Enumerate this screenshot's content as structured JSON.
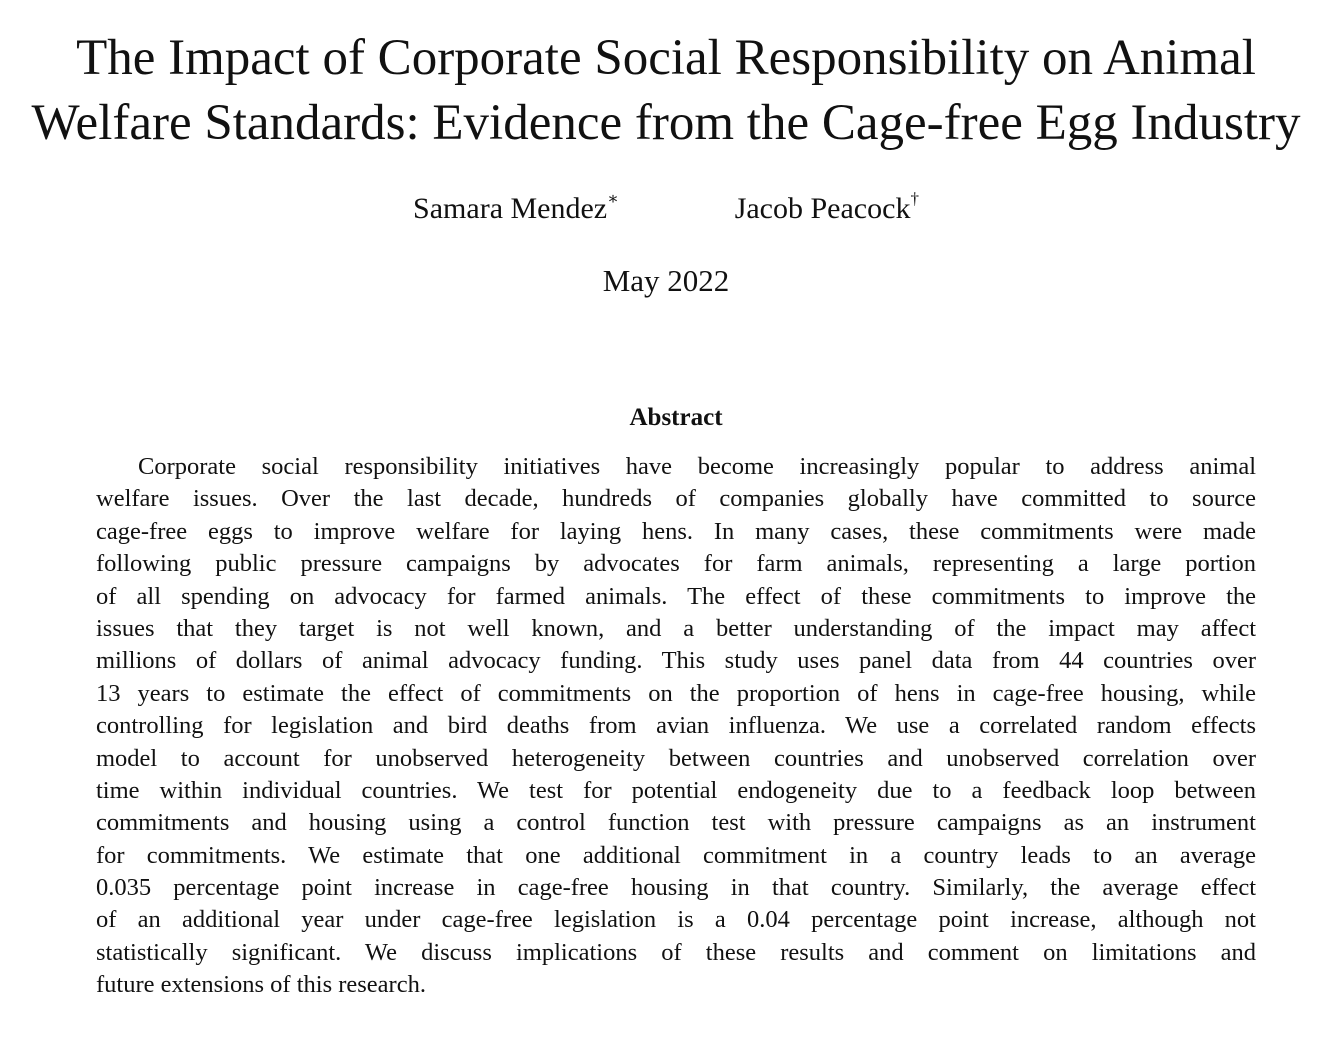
{
  "title": {
    "lines": [
      "The Impact of Corporate Social Responsibility on Animal",
      "Welfare Standards: Evidence from the Cage-free Egg Industry"
    ]
  },
  "authors": [
    {
      "name": "Samara Mendez",
      "mark": "∗"
    },
    {
      "name": "Jacob Peacock",
      "mark": "†"
    }
  ],
  "date": "May 2022",
  "abstract": {
    "heading": "Abstract",
    "lines": [
      "Corporate social responsibility initiatives have become increasingly popular to address animal",
      "welfare issues.  Over the last decade, hundreds of companies globally have committed to source",
      "cage-free eggs to improve welfare for laying hens.  In many cases, these commitments were made",
      "following public pressure campaigns by advocates for farm animals, representing a large portion",
      "of all spending on advocacy for farmed animals.  The effect of these commitments to improve the",
      "issues that they target is not well known, and a better understanding of the impact may affect",
      "millions of dollars of animal advocacy funding.  This study uses panel data from 44 countries over",
      "13 years to estimate the effect of commitments on the proportion of hens in cage-free housing, while",
      "controlling for legislation and bird deaths from avian influenza.  We use a correlated random effects",
      "model to account for unobserved heterogeneity between countries and unobserved correlation over",
      "time within individual countries.  We test for potential endogeneity due to a feedback loop between",
      "commitments and housing using a control function test with pressure campaigns as an instrument",
      "for commitments.  We estimate that one additional commitment in a country leads to an average",
      "0.035 percentage point increase in cage-free housing in that country.  Similarly, the average effect",
      "of an additional year under cage-free legislation is a 0.04 percentage point increase, although not",
      "statistically significant.  We discuss implications of these results and comment on limitations and",
      "future extensions of this research."
    ]
  }
}
